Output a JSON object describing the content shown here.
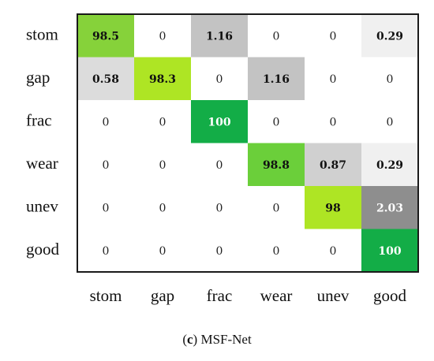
{
  "chart_data": {
    "type": "heatmap",
    "title": "",
    "xlabel": "",
    "ylabel": "",
    "row_labels": [
      "stom",
      "gap",
      "frac",
      "wear",
      "unev",
      "good"
    ],
    "col_labels": [
      "stom",
      "gap",
      "frac",
      "wear",
      "unev",
      "good"
    ],
    "cells": [
      [
        "98.5",
        "0",
        "1.16",
        "0",
        "0",
        "0.29"
      ],
      [
        "0.58",
        "98.3",
        "0",
        "1.16",
        "0",
        "0"
      ],
      [
        "0",
        "0",
        "100",
        "0",
        "0",
        "0"
      ],
      [
        "0",
        "0",
        "0",
        "98.8",
        "0.87",
        "0.29"
      ],
      [
        "0",
        "0",
        "0",
        "0",
        "98",
        "2.03"
      ],
      [
        "0",
        "0",
        "0",
        "0",
        "0",
        "100"
      ]
    ]
  },
  "caption": {
    "letter": "c",
    "open_paren": "(",
    "close_paren": ")",
    "text": " MSF-Net"
  }
}
